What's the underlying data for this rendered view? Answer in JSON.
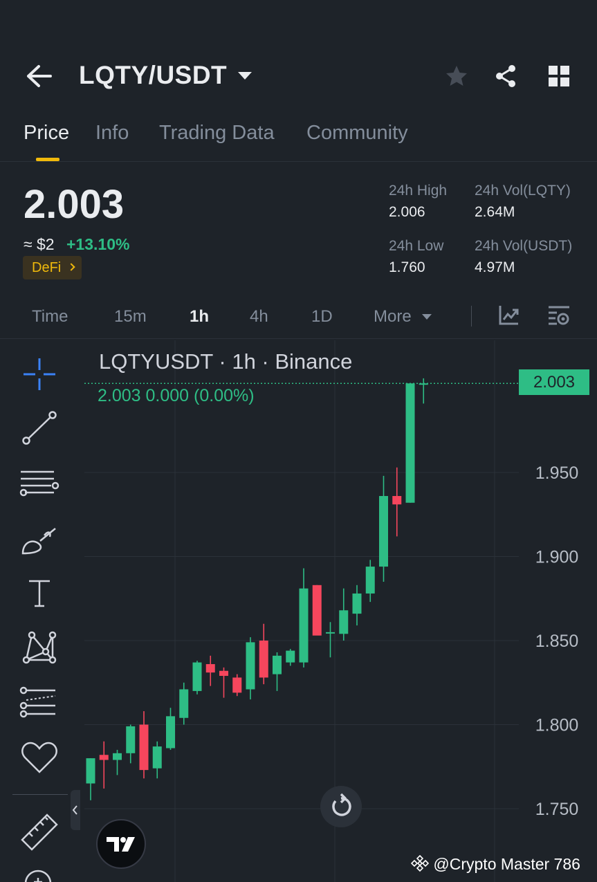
{
  "header": {
    "pair": "LQTY/USDT",
    "icons": [
      "back-arrow-icon",
      "caret-down-icon",
      "star-icon",
      "share-icon",
      "grid-icon"
    ]
  },
  "tabs": [
    {
      "label": "Price",
      "active": true
    },
    {
      "label": "Info",
      "active": false
    },
    {
      "label": "Trading Data",
      "active": false
    },
    {
      "label": "Community",
      "active": false
    }
  ],
  "ticker": {
    "price": "2.003",
    "approx": "≈ $2",
    "change": "+13.10%",
    "tag": "DeFi",
    "stats": {
      "high_label": "24h High",
      "high_value": "2.006",
      "low_label": "24h Low",
      "low_value": "1.760",
      "vol_base_label": "24h Vol(LQTY)",
      "vol_base_value": "2.64M",
      "vol_quote_label": "24h Vol(USDT)",
      "vol_quote_value": "4.97M"
    }
  },
  "intervals": [
    {
      "label": "Time",
      "active": false
    },
    {
      "label": "15m",
      "active": false
    },
    {
      "label": "1h",
      "active": true
    },
    {
      "label": "4h",
      "active": false
    },
    {
      "label": "1D",
      "active": false
    },
    {
      "label": "More",
      "active": false
    }
  ],
  "chart_header": {
    "title": "LQTYUSDT · 1h · Binance",
    "ohlc": "2.003  0.000 (0.00%)",
    "last_price": "2.003"
  },
  "colors": {
    "up": "#2ebd85",
    "down": "#f6465d",
    "accent": "#f0b90b",
    "background": "#1e2329"
  },
  "chart_data": {
    "type": "candlestick",
    "yaxis_ticks": [
      "1.950",
      "1.900",
      "1.850",
      "1.800",
      "1.750"
    ],
    "ylim": [
      1.706,
      2.022
    ],
    "candles": [
      {
        "o": 1.765,
        "h": 1.78,
        "l": 1.755,
        "c": 1.78
      },
      {
        "o": 1.782,
        "h": 1.79,
        "l": 1.762,
        "c": 1.779
      },
      {
        "o": 1.779,
        "h": 1.785,
        "l": 1.77,
        "c": 1.783
      },
      {
        "o": 1.783,
        "h": 1.8,
        "l": 1.777,
        "c": 1.799
      },
      {
        "o": 1.8,
        "h": 1.808,
        "l": 1.768,
        "c": 1.773
      },
      {
        "o": 1.774,
        "h": 1.79,
        "l": 1.768,
        "c": 1.787
      },
      {
        "o": 1.786,
        "h": 1.81,
        "l": 1.785,
        "c": 1.805
      },
      {
        "o": 1.804,
        "h": 1.825,
        "l": 1.8,
        "c": 1.821
      },
      {
        "o": 1.82,
        "h": 1.838,
        "l": 1.818,
        "c": 1.837
      },
      {
        "o": 1.836,
        "h": 1.841,
        "l": 1.823,
        "c": 1.831
      },
      {
        "o": 1.832,
        "h": 1.834,
        "l": 1.816,
        "c": 1.829
      },
      {
        "o": 1.828,
        "h": 1.83,
        "l": 1.817,
        "c": 1.819
      },
      {
        "o": 1.821,
        "h": 1.852,
        "l": 1.815,
        "c": 1.849
      },
      {
        "o": 1.85,
        "h": 1.86,
        "l": 1.824,
        "c": 1.828
      },
      {
        "o": 1.83,
        "h": 1.843,
        "l": 1.82,
        "c": 1.841
      },
      {
        "o": 1.837,
        "h": 1.845,
        "l": 1.835,
        "c": 1.844
      },
      {
        "o": 1.837,
        "h": 1.893,
        "l": 1.834,
        "c": 1.881
      },
      {
        "o": 1.883,
        "h": 1.883,
        "l": 1.855,
        "c": 1.853
      },
      {
        "o": 1.855,
        "h": 1.861,
        "l": 1.84,
        "c": 1.855
      },
      {
        "o": 1.854,
        "h": 1.881,
        "l": 1.85,
        "c": 1.868
      },
      {
        "o": 1.866,
        "h": 1.883,
        "l": 1.859,
        "c": 1.878
      },
      {
        "o": 1.878,
        "h": 1.898,
        "l": 1.873,
        "c": 1.894
      },
      {
        "o": 1.894,
        "h": 1.948,
        "l": 1.885,
        "c": 1.936
      },
      {
        "o": 1.936,
        "h": 1.953,
        "l": 1.912,
        "c": 1.931
      },
      {
        "o": 1.932,
        "h": 2.003,
        "l": 1.932,
        "c": 2.003
      },
      {
        "o": 2.003,
        "h": 2.006,
        "l": 1.991,
        "c": 2.003
      }
    ]
  },
  "watermark": "@Crypto Master 786"
}
